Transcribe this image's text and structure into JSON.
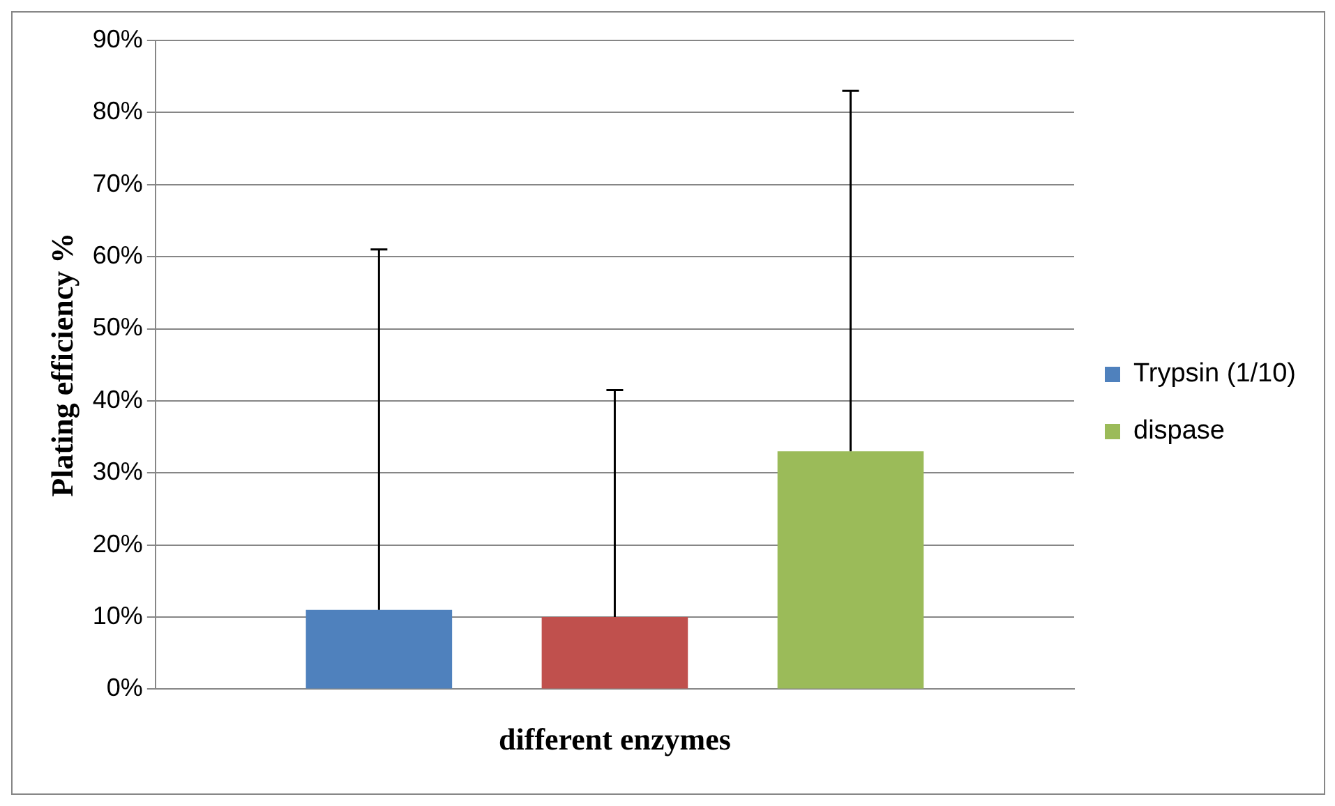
{
  "chart_data": {
    "type": "bar",
    "xlabel": "different enzymes",
    "ylabel": "Plating efficiency %",
    "categories": [
      null
    ],
    "series": [
      {
        "name": "Trypsin (1/10)",
        "color": "#4f81bd",
        "values": [
          11
        ],
        "errors": [
          [
            11,
            61
          ]
        ]
      },
      {
        "color": "#c0504d",
        "values": [
          10
        ],
        "errors": [
          [
            10,
            41.5
          ]
        ]
      },
      {
        "name": "dispase",
        "color": "#9bbb59",
        "values": [
          33
        ],
        "errors": [
          [
            33,
            83
          ]
        ]
      }
    ],
    "ylim": [
      0,
      90
    ],
    "yticks": [
      {
        "value": 0,
        "label": "0%"
      },
      {
        "value": 10,
        "label": "10%"
      },
      {
        "value": 20,
        "label": "20%"
      },
      {
        "value": 30,
        "label": "30%"
      },
      {
        "value": 40,
        "label": "40%"
      },
      {
        "value": 50,
        "label": "50%"
      },
      {
        "value": 60,
        "label": "60%"
      },
      {
        "value": 70,
        "label": "70%"
      },
      {
        "value": 80,
        "label": "80%"
      },
      {
        "value": 90,
        "label": "90%"
      }
    ],
    "grid": "y",
    "legend": "right"
  }
}
